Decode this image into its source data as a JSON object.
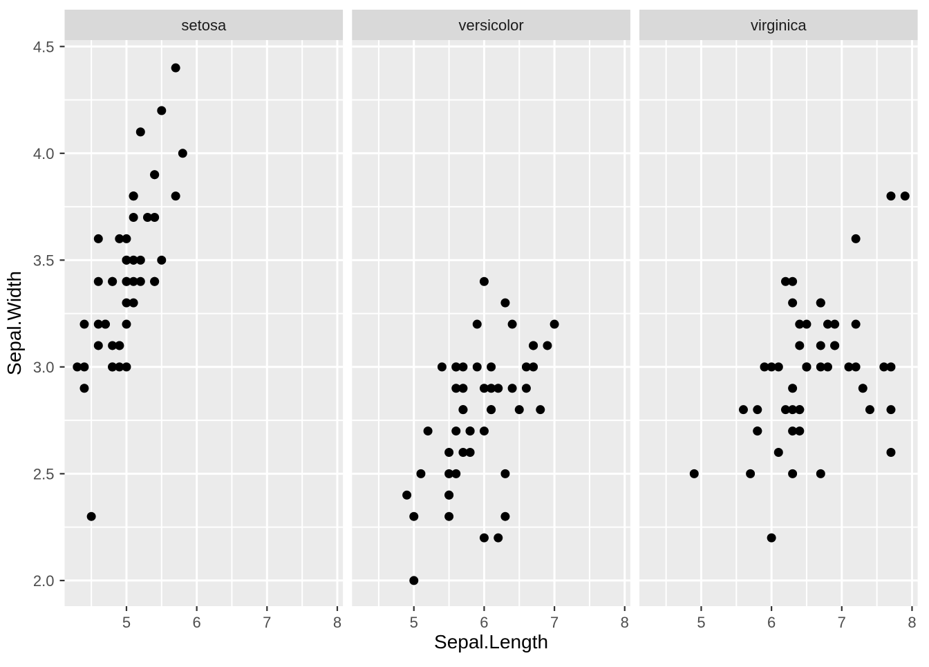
{
  "chart_data": {
    "type": "scatter",
    "title": "",
    "xlabel": "Sepal.Length",
    "ylabel": "Sepal.Width",
    "legend": "none",
    "grid": "major and minor, white lines on grey panel",
    "faceted_by": "Species",
    "xlim": [
      4.12,
      8.08
    ],
    "ylim": [
      1.88,
      4.53
    ],
    "x_ticks": [
      5,
      6,
      7,
      8
    ],
    "x_tick_labels": [
      "5",
      "6",
      "7",
      "8"
    ],
    "x_minor_ticks": [
      4.5,
      5.5,
      6.5,
      7.5
    ],
    "y_ticks": [
      2.0,
      2.5,
      3.0,
      3.5,
      4.0,
      4.5
    ],
    "y_tick_labels": [
      "2.0",
      "2.5",
      "3.0",
      "3.5",
      "4.0",
      "4.5"
    ],
    "y_minor_ticks": [
      2.25,
      2.75,
      3.25,
      3.75,
      4.25
    ],
    "colors": {
      "background": "#FFFFFF",
      "panel_bg": "#EBEBEB",
      "strip_bg": "#D9D9D9",
      "grid": "#FFFFFF",
      "point": "#000000",
      "tick_label": "#4D4D4D",
      "tick_mark": "#333333",
      "axis_title": "#000000",
      "strip_text": "#1A1A1A"
    },
    "facets": [
      {
        "label": "setosa",
        "points": [
          [
            5.1,
            3.5
          ],
          [
            4.9,
            3.0
          ],
          [
            4.7,
            3.2
          ],
          [
            4.6,
            3.1
          ],
          [
            5.0,
            3.6
          ],
          [
            5.4,
            3.9
          ],
          [
            4.6,
            3.4
          ],
          [
            5.0,
            3.4
          ],
          [
            4.4,
            2.9
          ],
          [
            4.9,
            3.1
          ],
          [
            5.4,
            3.7
          ],
          [
            4.8,
            3.4
          ],
          [
            4.8,
            3.0
          ],
          [
            4.3,
            3.0
          ],
          [
            5.8,
            4.0
          ],
          [
            5.7,
            4.4
          ],
          [
            5.4,
            3.9
          ],
          [
            5.1,
            3.5
          ],
          [
            5.7,
            3.8
          ],
          [
            5.1,
            3.8
          ],
          [
            5.4,
            3.4
          ],
          [
            5.1,
            3.7
          ],
          [
            4.6,
            3.6
          ],
          [
            5.1,
            3.3
          ],
          [
            4.8,
            3.4
          ],
          [
            5.0,
            3.0
          ],
          [
            5.0,
            3.4
          ],
          [
            5.2,
            3.5
          ],
          [
            5.2,
            3.4
          ],
          [
            4.7,
            3.2
          ],
          [
            4.8,
            3.1
          ],
          [
            5.4,
            3.4
          ],
          [
            5.2,
            4.1
          ],
          [
            5.5,
            4.2
          ],
          [
            4.9,
            3.1
          ],
          [
            5.0,
            3.2
          ],
          [
            5.5,
            3.5
          ],
          [
            4.9,
            3.6
          ],
          [
            4.4,
            3.0
          ],
          [
            5.1,
            3.4
          ],
          [
            5.0,
            3.5
          ],
          [
            4.5,
            2.3
          ],
          [
            4.4,
            3.2
          ],
          [
            5.0,
            3.5
          ],
          [
            5.1,
            3.8
          ],
          [
            4.8,
            3.0
          ],
          [
            5.1,
            3.8
          ],
          [
            4.6,
            3.2
          ],
          [
            5.3,
            3.7
          ],
          [
            5.0,
            3.3
          ]
        ]
      },
      {
        "label": "versicolor",
        "points": [
          [
            7.0,
            3.2
          ],
          [
            6.4,
            3.2
          ],
          [
            6.9,
            3.1
          ],
          [
            5.5,
            2.3
          ],
          [
            6.5,
            2.8
          ],
          [
            5.7,
            2.8
          ],
          [
            6.3,
            3.3
          ],
          [
            4.9,
            2.4
          ],
          [
            6.6,
            2.9
          ],
          [
            5.2,
            2.7
          ],
          [
            5.0,
            2.0
          ],
          [
            5.9,
            3.0
          ],
          [
            6.0,
            2.2
          ],
          [
            6.1,
            2.9
          ],
          [
            5.6,
            2.9
          ],
          [
            6.7,
            3.1
          ],
          [
            5.6,
            3.0
          ],
          [
            5.8,
            2.7
          ],
          [
            6.2,
            2.2
          ],
          [
            5.6,
            2.5
          ],
          [
            5.9,
            3.2
          ],
          [
            6.1,
            2.8
          ],
          [
            6.3,
            2.5
          ],
          [
            6.1,
            2.8
          ],
          [
            6.4,
            2.9
          ],
          [
            6.6,
            3.0
          ],
          [
            6.8,
            2.8
          ],
          [
            6.7,
            3.0
          ],
          [
            6.0,
            2.9
          ],
          [
            5.7,
            2.6
          ],
          [
            5.5,
            2.4
          ],
          [
            5.5,
            2.4
          ],
          [
            5.8,
            2.7
          ],
          [
            6.0,
            2.7
          ],
          [
            5.4,
            3.0
          ],
          [
            6.0,
            3.4
          ],
          [
            6.7,
            3.1
          ],
          [
            6.3,
            2.3
          ],
          [
            5.6,
            3.0
          ],
          [
            5.5,
            2.5
          ],
          [
            5.5,
            2.6
          ],
          [
            6.1,
            3.0
          ],
          [
            5.8,
            2.6
          ],
          [
            5.0,
            2.3
          ],
          [
            5.6,
            2.7
          ],
          [
            5.7,
            3.0
          ],
          [
            5.7,
            2.9
          ],
          [
            6.2,
            2.9
          ],
          [
            5.1,
            2.5
          ],
          [
            5.7,
            2.8
          ]
        ]
      },
      {
        "label": "virginica",
        "points": [
          [
            6.3,
            3.3
          ],
          [
            5.8,
            2.7
          ],
          [
            7.1,
            3.0
          ],
          [
            6.3,
            2.9
          ],
          [
            6.5,
            3.0
          ],
          [
            7.6,
            3.0
          ],
          [
            4.9,
            2.5
          ],
          [
            7.3,
            2.9
          ],
          [
            6.7,
            2.5
          ],
          [
            7.2,
            3.6
          ],
          [
            6.5,
            3.2
          ],
          [
            6.4,
            2.7
          ],
          [
            6.8,
            3.0
          ],
          [
            5.7,
            2.5
          ],
          [
            5.8,
            2.8
          ],
          [
            6.4,
            3.2
          ],
          [
            6.5,
            3.0
          ],
          [
            7.7,
            3.8
          ],
          [
            7.7,
            2.6
          ],
          [
            6.0,
            2.2
          ],
          [
            6.9,
            3.2
          ],
          [
            5.6,
            2.8
          ],
          [
            7.7,
            2.8
          ],
          [
            6.3,
            2.7
          ],
          [
            6.7,
            3.3
          ],
          [
            7.2,
            3.2
          ],
          [
            6.2,
            2.8
          ],
          [
            6.1,
            3.0
          ],
          [
            6.4,
            2.8
          ],
          [
            7.2,
            3.0
          ],
          [
            7.4,
            2.8
          ],
          [
            7.9,
            3.8
          ],
          [
            6.4,
            2.8
          ],
          [
            6.3,
            2.8
          ],
          [
            6.1,
            2.6
          ],
          [
            7.7,
            3.0
          ],
          [
            6.3,
            3.4
          ],
          [
            6.4,
            3.1
          ],
          [
            6.0,
            3.0
          ],
          [
            6.9,
            3.1
          ],
          [
            6.7,
            3.1
          ],
          [
            6.9,
            3.1
          ],
          [
            5.8,
            2.7
          ],
          [
            6.8,
            3.2
          ],
          [
            6.7,
            3.3
          ],
          [
            6.7,
            3.0
          ],
          [
            6.3,
            2.5
          ],
          [
            6.5,
            3.0
          ],
          [
            6.2,
            3.4
          ],
          [
            5.9,
            3.0
          ]
        ]
      }
    ]
  }
}
